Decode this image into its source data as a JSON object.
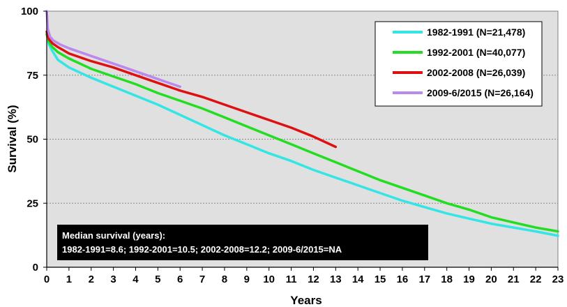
{
  "chart_data": {
    "type": "line",
    "xlabel": "Years",
    "ylabel": "Survival (%)",
    "xlim": [
      0,
      23
    ],
    "ylim": [
      0,
      100
    ],
    "x_ticks": [
      0,
      1,
      2,
      3,
      4,
      5,
      6,
      7,
      8,
      9,
      10,
      11,
      12,
      13,
      14,
      15,
      16,
      17,
      18,
      19,
      20,
      21,
      22,
      23
    ],
    "y_ticks": [
      0,
      25,
      50,
      75,
      100
    ],
    "grid": "horizontal dashed",
    "background": "#e0e0e0",
    "legend_position": "top-right",
    "series": [
      {
        "name": "1982-1991 (N=21,478)",
        "color": "#33e5e5",
        "points": [
          [
            0,
            91
          ],
          [
            0.1,
            87
          ],
          [
            0.25,
            84.5
          ],
          [
            0.5,
            81
          ],
          [
            1,
            78
          ],
          [
            2,
            74
          ],
          [
            3,
            70.5
          ],
          [
            4,
            67
          ],
          [
            5,
            63.5
          ],
          [
            6,
            59.5
          ],
          [
            7,
            55.5
          ],
          [
            8,
            51.5
          ],
          [
            9,
            48
          ],
          [
            10,
            44.5
          ],
          [
            11,
            41.5
          ],
          [
            12,
            38
          ],
          [
            13,
            35
          ],
          [
            14,
            32
          ],
          [
            15,
            29
          ],
          [
            16,
            26
          ],
          [
            17,
            23.5
          ],
          [
            18,
            21
          ],
          [
            19,
            19
          ],
          [
            20,
            17
          ],
          [
            21,
            15.5
          ],
          [
            22,
            14
          ],
          [
            23,
            12.3
          ]
        ]
      },
      {
        "name": "1992-2001 (N=40,077)",
        "color": "#22dd22",
        "points": [
          [
            0,
            91
          ],
          [
            0.1,
            88
          ],
          [
            0.25,
            86
          ],
          [
            0.5,
            84
          ],
          [
            1,
            81.5
          ],
          [
            2,
            77.5
          ],
          [
            3,
            74.5
          ],
          [
            4,
            71.5
          ],
          [
            5,
            68
          ],
          [
            6,
            65
          ],
          [
            7,
            62
          ],
          [
            8,
            58.5
          ],
          [
            9,
            55
          ],
          [
            10,
            51.5
          ],
          [
            11,
            48
          ],
          [
            12,
            44.5
          ],
          [
            13,
            41
          ],
          [
            14,
            37.5
          ],
          [
            15,
            34
          ],
          [
            16,
            31
          ],
          [
            17,
            28
          ],
          [
            18,
            25
          ],
          [
            19,
            22.5
          ],
          [
            20,
            19.5
          ],
          [
            21,
            17.5
          ],
          [
            22,
            15.5
          ],
          [
            23,
            14
          ]
        ]
      },
      {
        "name": "2002-2008 (N=26,039)",
        "color": "#dd1111",
        "points": [
          [
            0,
            92
          ],
          [
            0.1,
            89
          ],
          [
            0.25,
            87.5
          ],
          [
            0.5,
            86
          ],
          [
            1,
            83.5
          ],
          [
            2,
            80.5
          ],
          [
            3,
            78
          ],
          [
            4,
            75
          ],
          [
            5,
            72
          ],
          [
            6,
            69
          ],
          [
            7,
            66.5
          ],
          [
            8,
            63.5
          ],
          [
            9,
            60.5
          ],
          [
            10,
            57.5
          ],
          [
            11,
            54.5
          ],
          [
            12,
            51
          ],
          [
            13,
            47
          ]
        ]
      },
      {
        "name": "2009-6/2015 (N=26,164)",
        "color": "#bb88ee",
        "points": [
          [
            0,
            100
          ],
          [
            0.05,
            93
          ],
          [
            0.15,
            90
          ],
          [
            0.3,
            88.5
          ],
          [
            0.6,
            87
          ],
          [
            1,
            85.5
          ],
          [
            2,
            82.5
          ],
          [
            3,
            79.5
          ],
          [
            4,
            76.5
          ],
          [
            5,
            73.5
          ],
          [
            6,
            70.5
          ]
        ]
      }
    ],
    "annotation": {
      "line1": "Median survival (years):",
      "line2": "1982-1991=8.6; 1992-2001=10.5; 2002-2008=12.2; 2009-6/2015=NA"
    }
  }
}
